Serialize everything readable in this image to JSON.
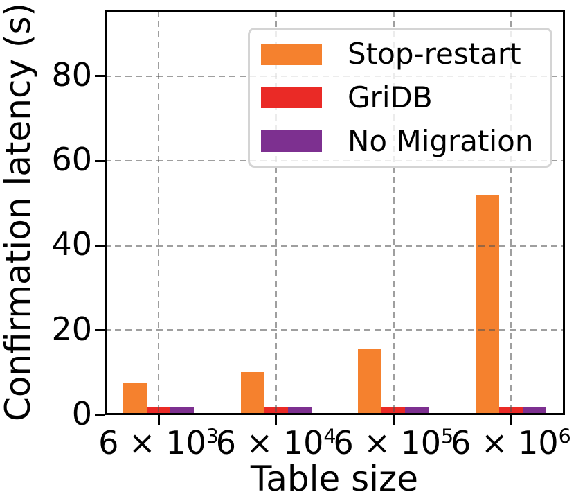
{
  "chart_data": {
    "type": "bar",
    "title": "",
    "xlabel": "Table size",
    "ylabel": "Confirmation latency (s)",
    "categories": [
      {
        "base": "6 × 10",
        "exp": "3"
      },
      {
        "base": "6 × 10",
        "exp": "4"
      },
      {
        "base": "6 × 10",
        "exp": "5"
      },
      {
        "base": "6 × 10",
        "exp": "6"
      }
    ],
    "series": [
      {
        "name": "Stop-restart",
        "color": "#f5812e",
        "values": [
          7.6,
          10.2,
          15.5,
          52
        ]
      },
      {
        "name": "GriDB",
        "color": "#ea2a26",
        "values": [
          1.9,
          1.9,
          1.9,
          1.9
        ]
      },
      {
        "name": "No Migration",
        "color": "#7d3090",
        "values": [
          2.0,
          2.0,
          2.0,
          2.0
        ]
      }
    ],
    "yticks": [
      0,
      20,
      40,
      60,
      80
    ],
    "ylim": [
      0,
      95.5
    ],
    "bar_width_fraction": 0.2,
    "x_margin_units": 0.46,
    "grid": true,
    "grid_style": "dashed",
    "grid_over_bars": true,
    "legend_position": "upper-right-inside",
    "axis_color": "#000000",
    "grid_color": "#8c8c8c",
    "legend_border_color": "#d4d4d4"
  }
}
